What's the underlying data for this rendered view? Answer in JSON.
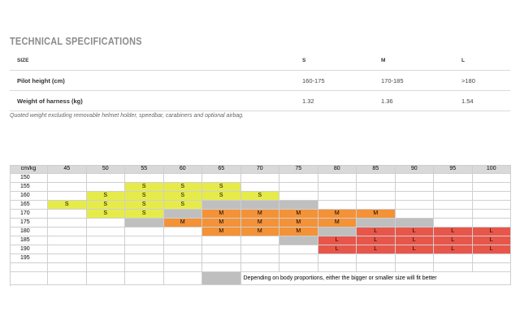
{
  "title": "TECHNICAL SPECIFICATIONS",
  "spec_table": {
    "header": {
      "label": "SIZE",
      "sizes": [
        "S",
        "M",
        "L"
      ]
    },
    "rows": [
      {
        "label": "Pilot height (cm)",
        "values": [
          "160-175",
          "170-185",
          ">180"
        ]
      },
      {
        "label": "Weight of harness (kg)",
        "values": [
          "1.32",
          "1.36",
          "1.54"
        ]
      }
    ]
  },
  "note": "Quoted weight excluding removable helmet holder, speedbar, carabiners and optional airbag.",
  "colors": {
    "S": "#e6eb4a",
    "M": "#f39237",
    "L": "#e8564a",
    "grey": "#bfbfbf",
    "header": "#d9d9d9"
  },
  "size_chart": {
    "corner": "cm/kg",
    "weights": [
      "45",
      "50",
      "55",
      "60",
      "65",
      "70",
      "75",
      "80",
      "85",
      "90",
      "95",
      "100"
    ],
    "heights": [
      "150",
      "155",
      "160",
      "165",
      "170",
      "175",
      "180",
      "185",
      "190",
      "195"
    ],
    "cells": [
      [
        "",
        "",
        "",
        "",
        "",
        "",
        "",
        "",
        "",
        "",
        "",
        ""
      ],
      [
        "",
        "",
        "S",
        "S",
        "S",
        "",
        "",
        "",
        "",
        "",
        "",
        ""
      ],
      [
        "",
        "S",
        "S",
        "S",
        "S",
        "S",
        "",
        "",
        "",
        "",
        "",
        ""
      ],
      [
        "S",
        "S",
        "S",
        "S",
        "G",
        "G",
        "G",
        "",
        "",
        "",
        "",
        ""
      ],
      [
        "",
        "S",
        "S",
        "G",
        "M",
        "M",
        "M",
        "M",
        "M",
        "",
        "",
        ""
      ],
      [
        "",
        "",
        "G",
        "M",
        "M",
        "M",
        "M",
        "M",
        "G",
        "G",
        "",
        ""
      ],
      [
        "",
        "",
        "",
        "",
        "M",
        "M",
        "M",
        "G",
        "L",
        "L",
        "L",
        "L"
      ],
      [
        "",
        "",
        "",
        "",
        "",
        "",
        "G",
        "L",
        "L",
        "L",
        "L",
        "L"
      ],
      [
        "",
        "",
        "",
        "",
        "",
        "",
        "",
        "L",
        "L",
        "L",
        "L",
        "L"
      ],
      [
        "",
        "",
        "",
        "",
        "",
        "",
        "",
        "",
        "",
        "",
        "",
        ""
      ]
    ],
    "legend_text": "Depending on body proportions, either the bigger or smaller size will fit better"
  }
}
